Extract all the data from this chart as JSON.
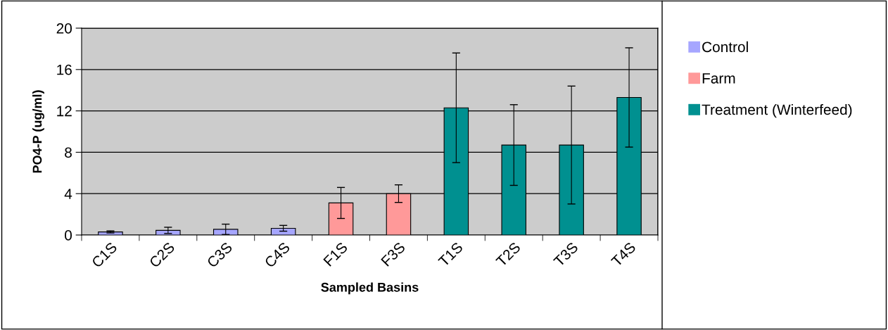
{
  "chart_data": {
    "type": "bar",
    "xlabel": "Sampled Basins",
    "ylabel": "PO4-P (ug/ml)",
    "categories": [
      "C1S",
      "C2S",
      "C3S",
      "C4S",
      "F1S",
      "F3S",
      "T1S",
      "T2S",
      "T3S",
      "T4S"
    ],
    "series": [
      {
        "name": "Control",
        "color": "#a6a6ff",
        "values": [
          0.3,
          0.45,
          0.55,
          0.65,
          null,
          null,
          null,
          null,
          null,
          null
        ],
        "errors": [
          0.1,
          0.3,
          0.5,
          0.28,
          null,
          null,
          null,
          null,
          null,
          null
        ]
      },
      {
        "name": "Farm",
        "color": "#ff9999",
        "values": [
          null,
          null,
          null,
          null,
          3.1,
          4.0,
          null,
          null,
          null,
          null
        ],
        "errors": [
          null,
          null,
          null,
          null,
          1.5,
          0.85,
          null,
          null,
          null,
          null
        ]
      },
      {
        "name": "Treatment (Winterfeed)",
        "color": "#009090",
        "values": [
          null,
          null,
          null,
          null,
          null,
          null,
          12.3,
          8.7,
          8.7,
          13.3
        ],
        "errors": [
          null,
          null,
          null,
          null,
          null,
          null,
          5.3,
          3.9,
          5.7,
          4.8
        ]
      }
    ],
    "ylim": [
      0,
      20
    ],
    "yticks": [
      0,
      4,
      8,
      12,
      16,
      20
    ],
    "grid": "y",
    "legend": "right"
  }
}
